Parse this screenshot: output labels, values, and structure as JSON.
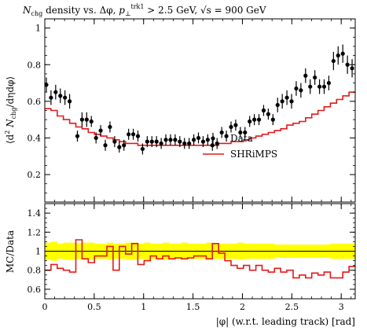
{
  "chart_data": {
    "type": "line",
    "title": "N_chg density vs. Δφ, p_⊥^trk1 > 2.5 GeV, √s = 900 GeV",
    "title_parts": {
      "main": "N",
      "main_sub": "chg",
      "rest1": " density vs. Δφ, ",
      "p": "p",
      "p_sub": "⊥",
      "p_sup": "trk1",
      "rest2": " > 2.5 GeV, ",
      "sqrt": "√s",
      "rest3": " = 900 GeV"
    },
    "xlabel": "|φ| (w.r.t. leading track) [rad]",
    "ylabel_main": "⟨d² N_chg/dηdφ⟩",
    "ylabel_main_parts": {
      "pre": "⟨d",
      "sup": "2",
      "mid": " N",
      "sub": "chg",
      "post": "/dηdφ⟩"
    },
    "ylabel_ratio": "MC/Data",
    "xlim": [
      0,
      3.14159
    ],
    "ylim_main": [
      0.05,
      1.05
    ],
    "ylim_ratio": [
      0.5,
      1.5
    ],
    "xticks": [
      0,
      0.5,
      1,
      1.5,
      2,
      2.5,
      3
    ],
    "xtick_labels": [
      "0",
      "0.5",
      "1",
      "1.5",
      "2",
      "2.5",
      "3"
    ],
    "yticks_main": [
      0.2,
      0.4,
      0.6,
      0.8,
      1.0
    ],
    "ytick_labels_main": [
      "0.2",
      "0.4",
      "0.6",
      "0.8",
      "1"
    ],
    "yticks_ratio": [
      0.6,
      0.8,
      1.0,
      1.2,
      1.4
    ],
    "ytick_labels_ratio": [
      "0.6",
      "0.8",
      "1",
      "1.2",
      "1.4"
    ],
    "legend_placement": "center-right",
    "colors": {
      "data": "#000000",
      "mc": "#e31a1c",
      "band": "#ffff00",
      "ref_line": "#000000"
    },
    "series": [
      {
        "name": "Data",
        "kind": "points",
        "x": [
          0.0157,
          0.0628,
          0.11,
          0.1571,
          0.2042,
          0.2513,
          0.3299,
          0.377,
          0.4241,
          0.4712,
          0.5184,
          0.5655,
          0.6126,
          0.6597,
          0.7069,
          0.754,
          0.8011,
          0.8482,
          0.8954,
          0.9425,
          0.9896,
          1.0367,
          1.0838,
          1.131,
          1.1781,
          1.2252,
          1.2723,
          1.3195,
          1.3666,
          1.4137,
          1.4608,
          1.508,
          1.5551,
          1.6022,
          1.6493,
          1.6965,
          1.7436,
          1.7907,
          1.8378,
          1.885,
          1.9321,
          1.9792,
          2.0263,
          2.0735,
          2.1206,
          2.1677,
          2.2148,
          2.2619,
          2.3091,
          2.3562,
          2.4033,
          2.4504,
          2.4976,
          2.5447,
          2.5918,
          2.6389,
          2.6861,
          2.7332,
          2.7803,
          2.8274,
          2.8746,
          2.9217,
          2.9688,
          3.0159,
          3.0631,
          3.1102
        ],
        "y": [
          0.69,
          0.62,
          0.65,
          0.63,
          0.62,
          0.6,
          0.41,
          0.5,
          0.5,
          0.49,
          0.4,
          0.44,
          0.36,
          0.46,
          0.38,
          0.35,
          0.36,
          0.42,
          0.42,
          0.41,
          0.34,
          0.38,
          0.38,
          0.38,
          0.37,
          0.39,
          0.39,
          0.39,
          0.38,
          0.37,
          0.37,
          0.39,
          0.4,
          0.38,
          0.39,
          0.36,
          0.37,
          0.43,
          0.41,
          0.46,
          0.47,
          0.43,
          0.43,
          0.49,
          0.5,
          0.5,
          0.55,
          0.53,
          0.5,
          0.58,
          0.6,
          0.62,
          0.6,
          0.67,
          0.66,
          0.74,
          0.68,
          0.73,
          0.68,
          0.68,
          0.7,
          0.82,
          0.85,
          0.86,
          0.8,
          0.78
        ],
        "err": [
          0.04,
          0.04,
          0.04,
          0.04,
          0.04,
          0.04,
          0.03,
          0.04,
          0.04,
          0.03,
          0.03,
          0.03,
          0.03,
          0.03,
          0.03,
          0.03,
          0.03,
          0.03,
          0.03,
          0.03,
          0.03,
          0.03,
          0.03,
          0.03,
          0.03,
          0.03,
          0.03,
          0.03,
          0.03,
          0.03,
          0.03,
          0.03,
          0.03,
          0.03,
          0.03,
          0.03,
          0.03,
          0.03,
          0.03,
          0.03,
          0.03,
          0.03,
          0.03,
          0.03,
          0.03,
          0.03,
          0.03,
          0.03,
          0.03,
          0.04,
          0.04,
          0.04,
          0.04,
          0.04,
          0.04,
          0.04,
          0.04,
          0.04,
          0.04,
          0.04,
          0.04,
          0.05,
          0.05,
          0.05,
          0.05,
          0.05
        ]
      },
      {
        "name": "SHRiMPS",
        "kind": "step",
        "edges": [
          0.0,
          0.063,
          0.126,
          0.188,
          0.251,
          0.314,
          0.377,
          0.44,
          0.503,
          0.565,
          0.628,
          0.691,
          0.754,
          0.817,
          0.88,
          0.942,
          1.005,
          1.068,
          1.131,
          1.194,
          1.257,
          1.319,
          1.382,
          1.445,
          1.508,
          1.571,
          1.634,
          1.696,
          1.759,
          1.822,
          1.885,
          1.948,
          2.011,
          2.073,
          2.136,
          2.199,
          2.262,
          2.325,
          2.388,
          2.45,
          2.513,
          2.576,
          2.639,
          2.702,
          2.765,
          2.827,
          2.89,
          2.953,
          3.016,
          3.079,
          3.142
        ],
        "y": [
          0.56,
          0.55,
          0.52,
          0.5,
          0.48,
          0.46,
          0.45,
          0.43,
          0.42,
          0.41,
          0.4,
          0.39,
          0.38,
          0.37,
          0.37,
          0.36,
          0.36,
          0.36,
          0.36,
          0.36,
          0.36,
          0.36,
          0.36,
          0.36,
          0.36,
          0.36,
          0.36,
          0.36,
          0.37,
          0.37,
          0.38,
          0.38,
          0.39,
          0.4,
          0.41,
          0.42,
          0.43,
          0.44,
          0.45,
          0.47,
          0.48,
          0.49,
          0.51,
          0.53,
          0.55,
          0.57,
          0.59,
          0.61,
          0.63,
          0.65
        ]
      },
      {
        "name": "MC/Data",
        "kind": "ratio-step",
        "edges": [
          0.0,
          0.063,
          0.126,
          0.188,
          0.251,
          0.314,
          0.377,
          0.44,
          0.503,
          0.565,
          0.628,
          0.691,
          0.754,
          0.817,
          0.88,
          0.942,
          1.005,
          1.068,
          1.131,
          1.194,
          1.257,
          1.319,
          1.382,
          1.445,
          1.508,
          1.571,
          1.634,
          1.696,
          1.759,
          1.822,
          1.885,
          1.948,
          2.011,
          2.073,
          2.136,
          2.199,
          2.262,
          2.325,
          2.388,
          2.45,
          2.513,
          2.576,
          2.639,
          2.702,
          2.765,
          2.827,
          2.89,
          2.953,
          3.016,
          3.079,
          3.142
        ],
        "y": [
          0.8,
          0.86,
          0.82,
          0.8,
          0.78,
          1.12,
          0.92,
          0.88,
          0.95,
          0.95,
          1.05,
          0.8,
          1.05,
          0.97,
          1.08,
          0.86,
          0.9,
          0.95,
          0.92,
          0.95,
          0.92,
          0.93,
          0.92,
          0.93,
          0.95,
          0.95,
          0.92,
          1.08,
          0.98,
          0.9,
          0.85,
          0.82,
          0.85,
          0.8,
          0.85,
          0.8,
          0.78,
          0.82,
          0.78,
          0.8,
          0.72,
          0.75,
          0.72,
          0.77,
          0.75,
          0.78,
          0.72,
          0.72,
          0.78,
          0.84
        ]
      },
      {
        "name": "Data uncertainty band",
        "kind": "band",
        "edges": [
          0.0,
          0.063,
          0.126,
          0.188,
          0.251,
          0.314,
          0.377,
          0.44,
          0.503,
          0.565,
          0.628,
          0.691,
          0.754,
          0.817,
          0.88,
          0.942,
          1.005,
          1.068,
          1.131,
          1.194,
          1.257,
          1.319,
          1.382,
          1.445,
          1.508,
          1.571,
          1.634,
          1.696,
          1.759,
          1.822,
          1.885,
          1.948,
          2.011,
          2.073,
          2.136,
          2.199,
          2.262,
          2.325,
          2.388,
          2.45,
          2.513,
          2.576,
          2.639,
          2.702,
          2.765,
          2.827,
          2.89,
          2.953,
          3.016,
          3.079,
          3.142
        ],
        "low": [
          0.91,
          0.9,
          0.92,
          0.91,
          0.91,
          0.92,
          0.91,
          0.91,
          0.92,
          0.92,
          0.91,
          0.92,
          0.92,
          0.91,
          0.91,
          0.92,
          0.91,
          0.92,
          0.92,
          0.91,
          0.92,
          0.92,
          0.91,
          0.92,
          0.92,
          0.92,
          0.91,
          0.92,
          0.92,
          0.92,
          0.92,
          0.91,
          0.92,
          0.92,
          0.92,
          0.92,
          0.92,
          0.93,
          0.93,
          0.93,
          0.93,
          0.93,
          0.93,
          0.93,
          0.93,
          0.93,
          0.92,
          0.92,
          0.92,
          0.92
        ],
        "high": [
          1.09,
          1.1,
          1.08,
          1.09,
          1.09,
          1.08,
          1.09,
          1.09,
          1.08,
          1.08,
          1.09,
          1.08,
          1.08,
          1.09,
          1.09,
          1.08,
          1.09,
          1.08,
          1.08,
          1.09,
          1.08,
          1.08,
          1.09,
          1.08,
          1.08,
          1.08,
          1.09,
          1.08,
          1.08,
          1.08,
          1.08,
          1.09,
          1.08,
          1.08,
          1.08,
          1.08,
          1.08,
          1.07,
          1.07,
          1.07,
          1.07,
          1.07,
          1.07,
          1.07,
          1.07,
          1.07,
          1.08,
          1.08,
          1.08,
          1.08
        ]
      }
    ]
  }
}
